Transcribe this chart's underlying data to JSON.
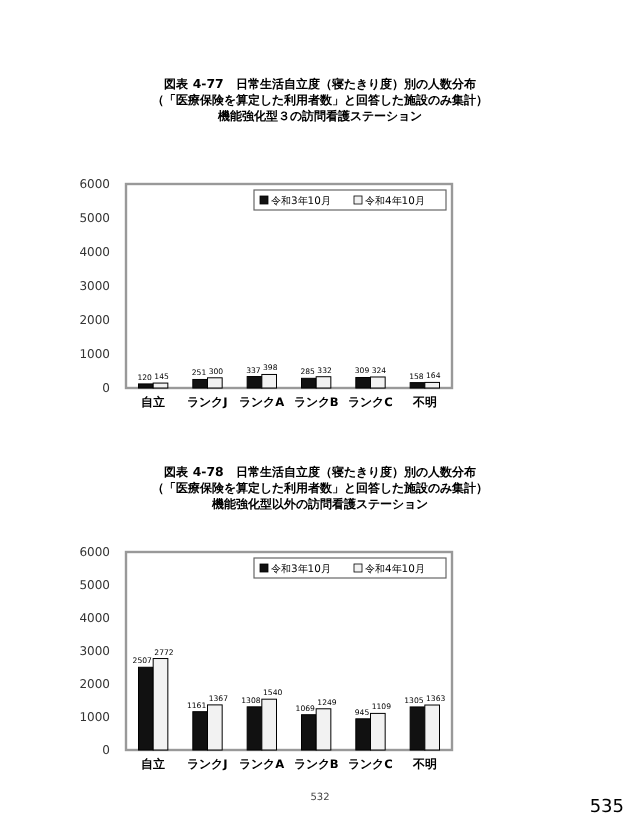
{
  "chart_data": [
    {
      "type": "bar",
      "title": "図表 4-77　日常生活自立度（寝たきり度）別の人数分布",
      "subtitle": "（「医療保険を算定した利用者数」と回答した施設のみ集計）",
      "annotations": [
        "機能強化型３の訪問看護ステーション"
      ],
      "categories": [
        "自立",
        "ランクJ",
        "ランクA",
        "ランクB",
        "ランクC",
        "不明"
      ],
      "series": [
        {
          "name": "令和3年10月",
          "color": "#111111",
          "values": [
            120,
            251,
            337,
            285,
            309,
            158
          ]
        },
        {
          "name": "令和4年10月",
          "color": "#f2f2f2",
          "values": [
            145,
            300,
            398,
            332,
            324,
            164
          ]
        }
      ],
      "ylim": [
        0,
        6000
      ],
      "yticks": [
        0,
        1000,
        2000,
        3000,
        4000,
        5000,
        6000
      ],
      "data_labels": true,
      "legend": "top right"
    },
    {
      "type": "bar",
      "title": "図表 4-78　日常生活自立度（寝たきり度）別の人数分布",
      "subtitle": "（「医療保険を算定した利用者数」と回答した施設のみ集計）",
      "categories": [
        "自立",
        "ランクJ",
        "ランクA",
        "ランクB",
        "ランクC",
        "不明"
      ],
      "series": [
        {
          "name": "令和3年10月",
          "color": "#111111",
          "values": [
            2507,
            1161,
            1308,
            1069,
            945,
            1305
          ]
        },
        {
          "name": "令和4年10月",
          "color": "#f2f2f2",
          "values": [
            2772,
            1367,
            1540,
            1249,
            1109,
            1363
          ]
        }
      ],
      "ylim": [
        0,
        6000
      ],
      "yticks": [
        0,
        1000,
        2000,
        3000,
        4000,
        5000,
        6000
      ],
      "data_labels": true,
      "legend": "top right",
      "annotations": [
        "機能強化型以外の訪問看護ステーション",
        "532",
        "535"
      ]
    }
  ]
}
